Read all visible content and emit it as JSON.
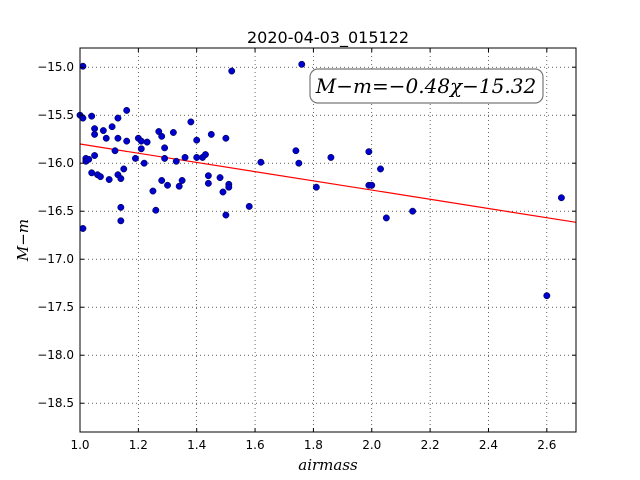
{
  "chart_data": {
    "type": "scatter",
    "title": "2020-04-03_015122",
    "xlabel": "airmass",
    "ylabel": "M−m",
    "xlim": [
      1.0,
      2.7
    ],
    "ylim": [
      -18.8,
      -14.8
    ],
    "y_inverted": true,
    "grid": true,
    "xticks": [
      1.0,
      1.2,
      1.4,
      1.6,
      1.8,
      2.0,
      2.2,
      2.4,
      2.6
    ],
    "xtick_labels": [
      "1.0",
      "1.2",
      "1.4",
      "1.6",
      "1.8",
      "2.0",
      "2.2",
      "2.4",
      "2.6"
    ],
    "yticks": [
      -15.0,
      -15.5,
      -16.0,
      -16.5,
      -17.0,
      -17.5,
      -18.0,
      -18.5
    ],
    "ytick_labels": [
      "−15.0",
      "−15.5",
      "−16.0",
      "−16.5",
      "−17.0",
      "−17.5",
      "−18.0",
      "−18.5"
    ],
    "fit_label": "M−m=−0.48χ−15.32",
    "fit": {
      "slope": -0.48,
      "intercept": -15.32,
      "color": "#ff0000"
    },
    "marker_color": "#0000cc",
    "points": [
      [
        1.0,
        -15.5
      ],
      [
        1.01,
        -14.99
      ],
      [
        1.01,
        -15.53
      ],
      [
        1.01,
        -16.68
      ],
      [
        1.02,
        -15.95
      ],
      [
        1.02,
        -15.98
      ],
      [
        1.03,
        -15.96
      ],
      [
        1.04,
        -16.1
      ],
      [
        1.04,
        -15.51
      ],
      [
        1.05,
        -15.92
      ],
      [
        1.05,
        -15.64
      ],
      [
        1.05,
        -15.7
      ],
      [
        1.06,
        -16.12
      ],
      [
        1.07,
        -16.14
      ],
      [
        1.08,
        -15.66
      ],
      [
        1.09,
        -15.74
      ],
      [
        1.1,
        -16.17
      ],
      [
        1.11,
        -15.62
      ],
      [
        1.12,
        -15.87
      ],
      [
        1.13,
        -15.53
      ],
      [
        1.13,
        -15.74
      ],
      [
        1.13,
        -16.12
      ],
      [
        1.14,
        -16.16
      ],
      [
        1.14,
        -16.6
      ],
      [
        1.14,
        -16.46
      ],
      [
        1.15,
        -16.06
      ],
      [
        1.16,
        -15.77
      ],
      [
        1.16,
        -15.45
      ],
      [
        1.19,
        -15.95
      ],
      [
        1.2,
        -15.74
      ],
      [
        1.21,
        -15.85
      ],
      [
        1.21,
        -15.77
      ],
      [
        1.22,
        -16.0
      ],
      [
        1.23,
        -15.78
      ],
      [
        1.25,
        -16.29
      ],
      [
        1.26,
        -16.49
      ],
      [
        1.27,
        -15.67
      ],
      [
        1.28,
        -15.72
      ],
      [
        1.28,
        -16.18
      ],
      [
        1.29,
        -15.84
      ],
      [
        1.29,
        -15.95
      ],
      [
        1.3,
        -16.23
      ],
      [
        1.32,
        -15.68
      ],
      [
        1.33,
        -15.98
      ],
      [
        1.34,
        -16.24
      ],
      [
        1.35,
        -16.18
      ],
      [
        1.36,
        -15.94
      ],
      [
        1.38,
        -15.57
      ],
      [
        1.4,
        -15.76
      ],
      [
        1.4,
        -15.94
      ],
      [
        1.42,
        -15.94
      ],
      [
        1.43,
        -15.91
      ],
      [
        1.44,
        -16.21
      ],
      [
        1.44,
        -16.13
      ],
      [
        1.45,
        -15.7
      ],
      [
        1.48,
        -16.15
      ],
      [
        1.49,
        -16.3
      ],
      [
        1.5,
        -16.54
      ],
      [
        1.5,
        -15.74
      ],
      [
        1.51,
        -16.22
      ],
      [
        1.51,
        -16.25
      ],
      [
        1.52,
        -15.04
      ],
      [
        1.58,
        -16.45
      ],
      [
        1.62,
        -15.99
      ],
      [
        1.74,
        -15.87
      ],
      [
        1.75,
        -16.0
      ],
      [
        1.76,
        -14.97
      ],
      [
        1.81,
        -16.25
      ],
      [
        1.86,
        -15.94
      ],
      [
        1.99,
        -15.88
      ],
      [
        1.99,
        -16.23
      ],
      [
        2.0,
        -16.23
      ],
      [
        2.03,
        -16.06
      ],
      [
        2.05,
        -16.57
      ],
      [
        2.14,
        -16.5
      ],
      [
        2.6,
        -17.38
      ],
      [
        2.65,
        -16.36
      ]
    ]
  }
}
